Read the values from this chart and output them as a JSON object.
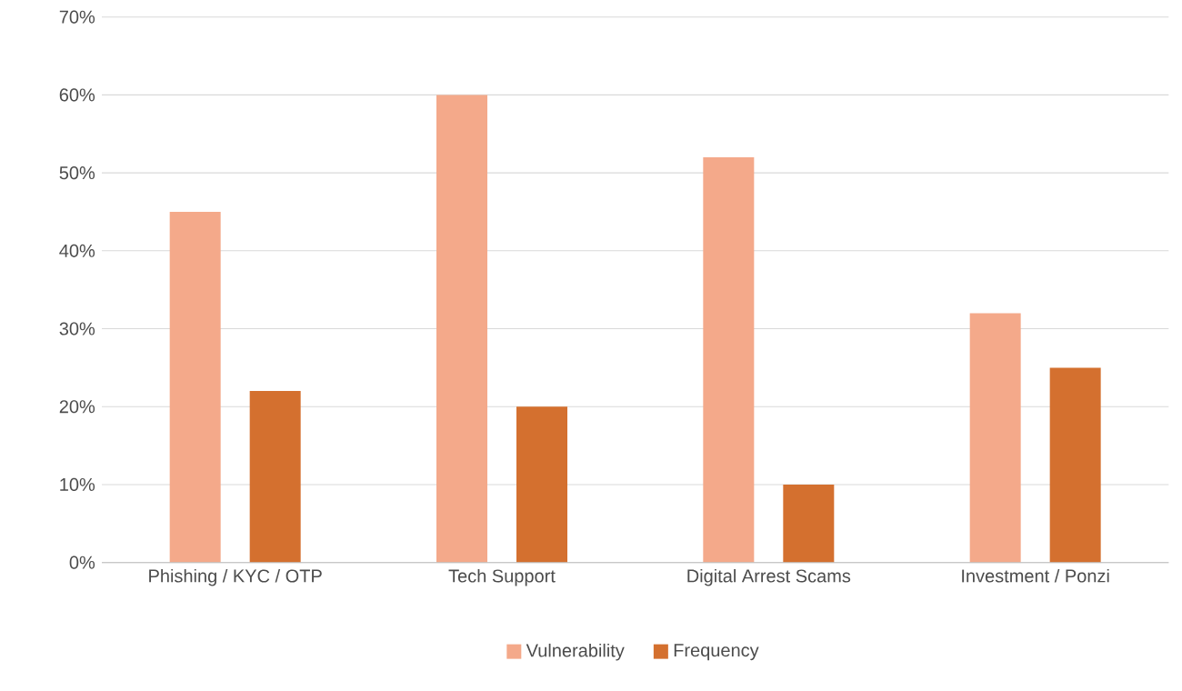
{
  "chart_data": {
    "type": "bar",
    "categories": [
      "Phishing / KYC / OTP",
      "Tech Support",
      "Digital Arrest Scams",
      "Investment / Ponzi"
    ],
    "series": [
      {
        "name": "Vulnerability",
        "color": "#f4a98a",
        "values": [
          45,
          60,
          52,
          32
        ]
      },
      {
        "name": "Frequency",
        "color": "#d4702f",
        "values": [
          22,
          20,
          10,
          25
        ]
      }
    ],
    "ylim": [
      0,
      70
    ],
    "yticks": [
      {
        "value": 0,
        "label": "0%"
      },
      {
        "value": 10,
        "label": "10%"
      },
      {
        "value": 20,
        "label": "20%"
      },
      {
        "value": 30,
        "label": "30%"
      },
      {
        "value": 40,
        "label": "40%"
      },
      {
        "value": 50,
        "label": "50%"
      },
      {
        "value": 60,
        "label": "60%"
      },
      {
        "value": 70,
        "label": "70%"
      }
    ],
    "grid": "y",
    "legend": "bottom"
  }
}
